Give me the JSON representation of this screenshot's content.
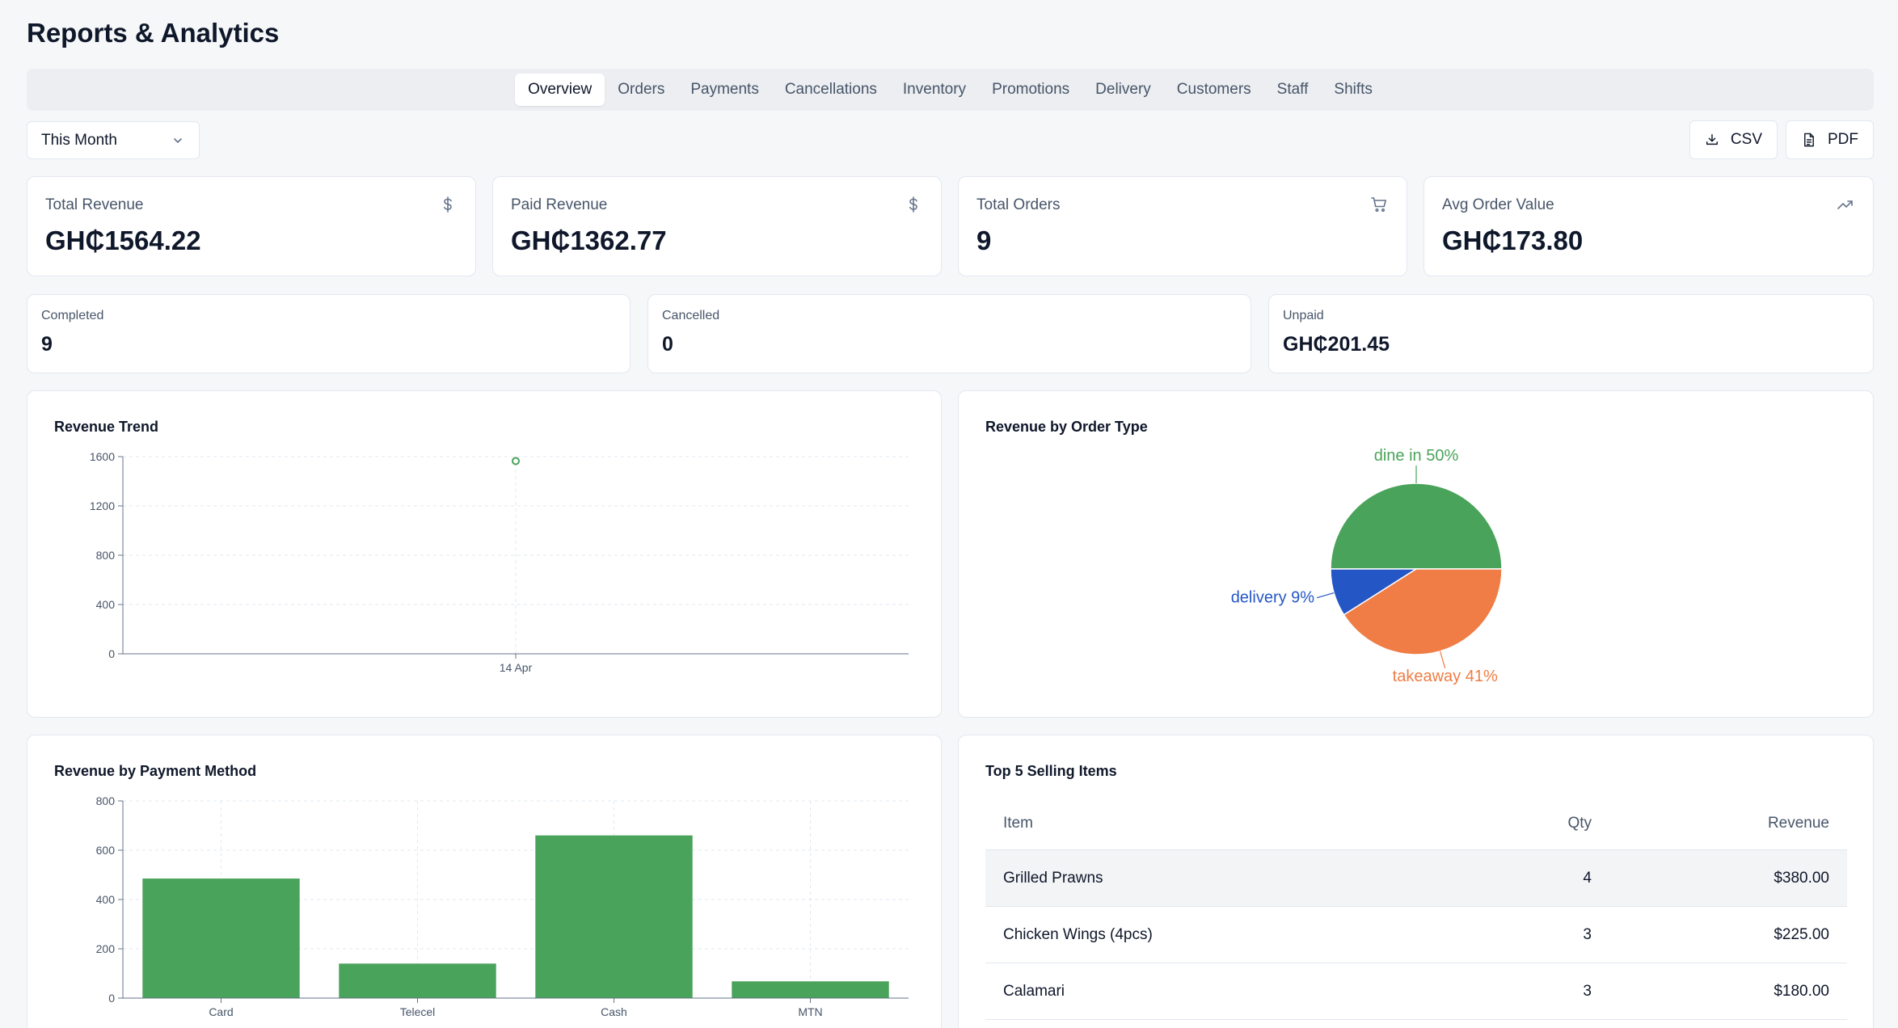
{
  "page": {
    "title": "Reports & Analytics"
  },
  "tabs": [
    {
      "label": "Overview",
      "active": true
    },
    {
      "label": "Orders"
    },
    {
      "label": "Payments"
    },
    {
      "label": "Cancellations"
    },
    {
      "label": "Inventory"
    },
    {
      "label": "Promotions"
    },
    {
      "label": "Delivery"
    },
    {
      "label": "Customers"
    },
    {
      "label": "Staff"
    },
    {
      "label": "Shifts"
    }
  ],
  "filters": {
    "period": "This Month"
  },
  "export": {
    "csv_label": "CSV",
    "pdf_label": "PDF"
  },
  "kpis": [
    {
      "label": "Total Revenue",
      "value": "GH₵1564.22",
      "icon": "dollar-icon"
    },
    {
      "label": "Paid Revenue",
      "value": "GH₵1362.77",
      "icon": "dollar-icon"
    },
    {
      "label": "Total Orders",
      "value": "9",
      "icon": "cart-icon"
    },
    {
      "label": "Avg Order Value",
      "value": "GH₵173.80",
      "icon": "trending-up-icon"
    }
  ],
  "stats": [
    {
      "label": "Completed",
      "value": "9"
    },
    {
      "label": "Cancelled",
      "value": "0"
    },
    {
      "label": "Unpaid",
      "value": "GH₵201.45"
    }
  ],
  "panels": {
    "revenue_trend": "Revenue Trend",
    "order_type": "Revenue by Order Type",
    "payment_method": "Revenue by Payment Method",
    "top_items": "Top 5 Selling Items"
  },
  "chart_data": [
    {
      "type": "line",
      "title": "Revenue Trend",
      "x": [
        "14 Apr"
      ],
      "series": [
        {
          "values": [
            1564.22
          ]
        }
      ],
      "ylim": [
        0,
        1600
      ],
      "yticks": [
        0,
        400,
        800,
        1200,
        1600
      ],
      "grid": true,
      "color": "#4aa35a"
    },
    {
      "type": "pie",
      "title": "Revenue by Order Type",
      "slices": [
        {
          "label": "dine in 50%",
          "value": 50,
          "color": "#4aa35a"
        },
        {
          "label": "delivery 9%",
          "value": 9,
          "color": "#2457c5"
        },
        {
          "label": "takeaway 41%",
          "value": 41,
          "color": "#ef7d45"
        }
      ]
    },
    {
      "type": "bar",
      "title": "Revenue by Payment Method",
      "categories": [
        "Card",
        "Telecel",
        "Cash",
        "MTN"
      ],
      "values": [
        485,
        140,
        660,
        68
      ],
      "ylim": [
        0,
        800
      ],
      "yticks": [
        0,
        200,
        400,
        600,
        800
      ],
      "grid": true,
      "color": "#4aa35a"
    }
  ],
  "top_items": {
    "columns": [
      "Item",
      "Qty",
      "Revenue"
    ],
    "rows": [
      {
        "item": "Grilled Prawns",
        "qty": "4",
        "revenue": "$380.00"
      },
      {
        "item": "Chicken Wings (4pcs)",
        "qty": "3",
        "revenue": "$225.00"
      },
      {
        "item": "Calamari",
        "qty": "3",
        "revenue": "$180.00"
      }
    ]
  }
}
